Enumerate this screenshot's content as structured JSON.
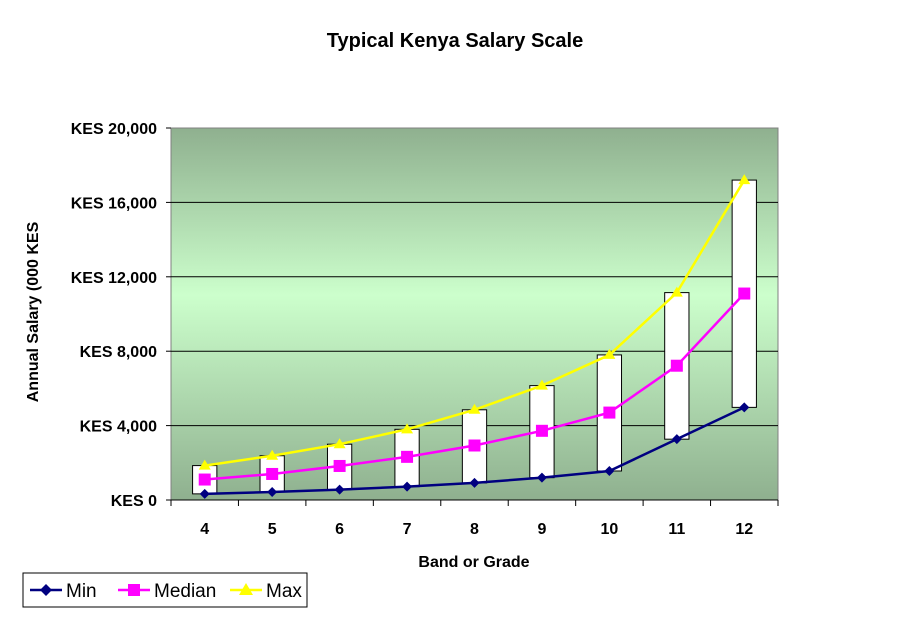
{
  "chart_data": {
    "type": "line",
    "title": "Typical Kenya Salary Scale",
    "xlabel": "Band or Grade",
    "ylabel": "Annual Salary (000 KES",
    "categories": [
      "4",
      "5",
      "6",
      "7",
      "8",
      "9",
      "10",
      "11",
      "12"
    ],
    "ylim": [
      0,
      20000
    ],
    "yticks": [
      0,
      4000,
      8000,
      12000,
      16000,
      20000
    ],
    "ytick_labels": [
      "KES 0",
      "KES 4,000",
      "KES 8,000",
      "KES 12,000",
      "KES 16,000",
      "KES 20,000"
    ],
    "grid": true,
    "legend_position": "bottom-left",
    "range_boxes": true,
    "series": [
      {
        "name": "Min",
        "color": "#000080",
        "marker": "diamond",
        "values": [
          330,
          430,
          560,
          720,
          920,
          1200,
          1560,
          3270,
          4980
        ]
      },
      {
        "name": "Median",
        "color": "#FF00FF",
        "marker": "square",
        "values": [
          1100,
          1400,
          1830,
          2320,
          2930,
          3720,
          4700,
          7220,
          11100
        ]
      },
      {
        "name": "Max",
        "color": "#FFFF00",
        "marker": "triangle",
        "values": [
          1850,
          2380,
          3000,
          3800,
          4850,
          6150,
          7800,
          11150,
          17200
        ]
      }
    ],
    "colors": {
      "plot_bg_top": "#8FB08F",
      "plot_bg_mid": "#CCFFCC",
      "plot_bg_bottom": "#8FB08F"
    }
  }
}
